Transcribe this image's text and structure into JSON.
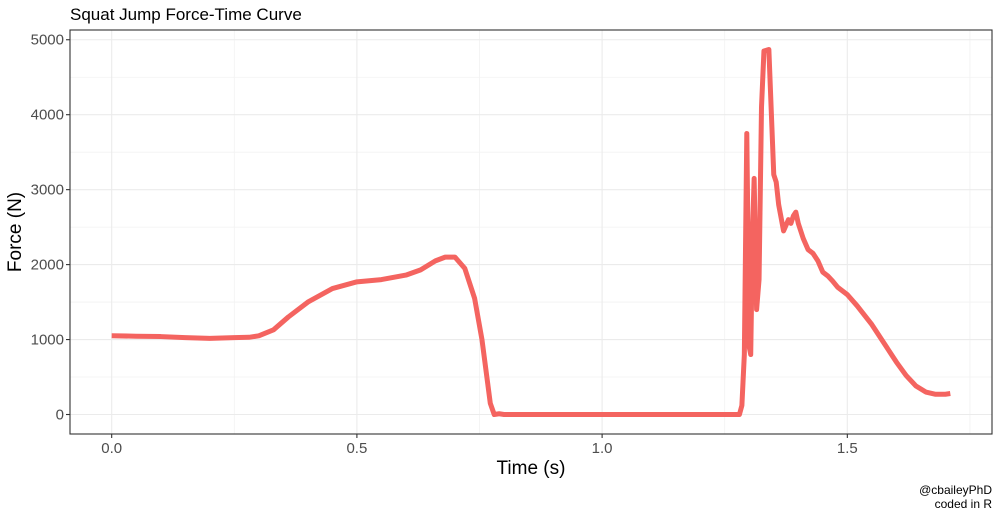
{
  "chart_data": {
    "type": "line",
    "title": "Squat Jump Force-Time Curve",
    "xlabel": "Time (s)",
    "ylabel": "Force (N)",
    "xlim": [
      -0.085,
      1.795
    ],
    "ylim": [
      -260,
      5130
    ],
    "x_ticks": [
      0.0,
      0.5,
      1.0,
      1.5
    ],
    "x_tick_labels": [
      "0.0",
      "0.5",
      "1.0",
      "1.5"
    ],
    "y_ticks": [
      0,
      1000,
      2000,
      3000,
      4000,
      5000
    ],
    "y_tick_labels": [
      "0",
      "1000",
      "2000",
      "3000",
      "4000",
      "5000"
    ],
    "grid": true,
    "legend": "none",
    "line_color": "#F46460",
    "caption": [
      "@cbaileyPhD",
      "coded in R"
    ],
    "series": [
      {
        "x": [
          0.0,
          0.05,
          0.1,
          0.15,
          0.2,
          0.25,
          0.28,
          0.3,
          0.33,
          0.36,
          0.4,
          0.45,
          0.5,
          0.55,
          0.6,
          0.63,
          0.66,
          0.68,
          0.7,
          0.72,
          0.74,
          0.755,
          0.765,
          0.772,
          0.78,
          0.79,
          0.8,
          0.85,
          0.9,
          0.95,
          1.0,
          1.05,
          1.1,
          1.15,
          1.2,
          1.25,
          1.28,
          1.285,
          1.29,
          1.295,
          1.3,
          1.303,
          1.307,
          1.31,
          1.315,
          1.32,
          1.325,
          1.33,
          1.34,
          1.35,
          1.355,
          1.36,
          1.37,
          1.38,
          1.385,
          1.39,
          1.395,
          1.4,
          1.405,
          1.41,
          1.42,
          1.43,
          1.44,
          1.45,
          1.46,
          1.47,
          1.48,
          1.5,
          1.52,
          1.55,
          1.58,
          1.6,
          1.62,
          1.64,
          1.66,
          1.68,
          1.7,
          1.71
        ],
        "y": [
          1050,
          1045,
          1040,
          1025,
          1015,
          1025,
          1030,
          1050,
          1130,
          1300,
          1500,
          1680,
          1770,
          1800,
          1860,
          1930,
          2050,
          2100,
          2100,
          1950,
          1550,
          1000,
          500,
          150,
          0,
          10,
          0,
          0,
          0,
          0,
          0,
          0,
          0,
          0,
          0,
          0,
          0,
          120,
          800,
          3750,
          900,
          800,
          2500,
          3150,
          1400,
          1800,
          4100,
          4850,
          4870,
          3200,
          3100,
          2800,
          2450,
          2600,
          2550,
          2650,
          2700,
          2550,
          2450,
          2350,
          2200,
          2150,
          2050,
          1900,
          1850,
          1780,
          1700,
          1600,
          1450,
          1200,
          900,
          700,
          520,
          380,
          300,
          270,
          270,
          280
        ]
      }
    ]
  }
}
